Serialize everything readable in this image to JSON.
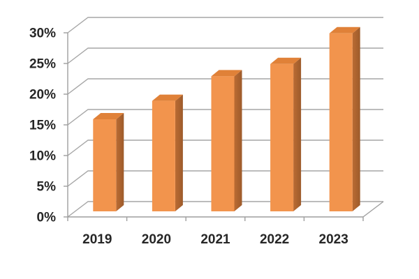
{
  "chart_data": {
    "type": "bar",
    "variant": "3d-column",
    "title": "",
    "xlabel": "",
    "ylabel": "",
    "categories": [
      "2019",
      "2020",
      "2021",
      "2022",
      "2023"
    ],
    "values": [
      15,
      18,
      22,
      24,
      29
    ],
    "unit": "%",
    "ylim": [
      0,
      30
    ],
    "y_step": 5,
    "y_tick_labels": [
      "0%",
      "5%",
      "10%",
      "15%",
      "20%",
      "25%",
      "30%"
    ],
    "grid": true,
    "legend": false
  },
  "colors": {
    "background": "#ffffff",
    "bar_front": "#F2944D",
    "bar_top": "#E08138",
    "bar_side_light": "#BA6B33",
    "bar_side_dark": "#9D5B2B",
    "gridline": "#A6A6A6",
    "axis": "#9E9E9E",
    "tick": "#9E9E9E",
    "label_text": "#262626"
  }
}
